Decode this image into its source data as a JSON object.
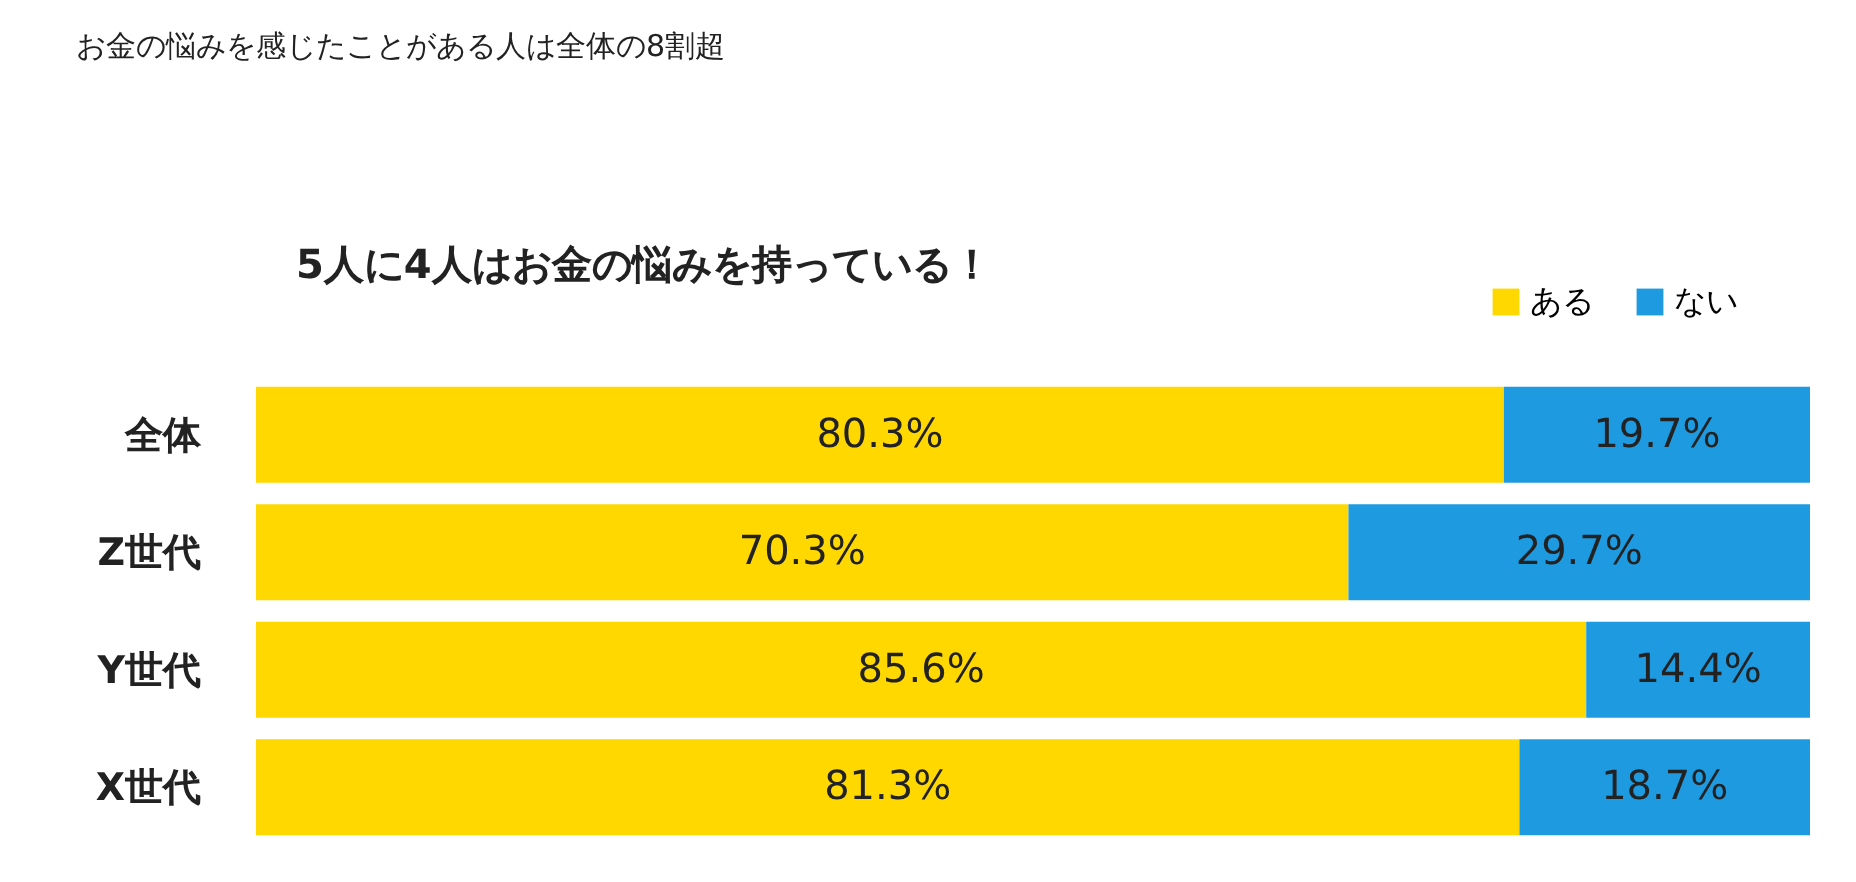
{
  "chart_data": {
    "type": "bar",
    "orientation": "horizontal",
    "stacked": true,
    "title": "お金の悩みを感じたことがある人は全体の8割超",
    "annotations": [
      "5人に4人はお金の悩みを持っている！"
    ],
    "categories": [
      "全体",
      "Z世代",
      "Y世代",
      "X世代"
    ],
    "series": [
      {
        "name": "ある",
        "color": "#ffd800",
        "values": [
          80.3,
          70.3,
          85.6,
          81.3
        ],
        "value_labels": [
          "80.3%",
          "70.3%",
          "85.6%",
          "81.3%"
        ]
      },
      {
        "name": "ない",
        "color": "#1e9be0",
        "values": [
          19.7,
          29.7,
          14.4,
          18.7
        ],
        "value_labels": [
          "19.7%",
          "29.7%",
          "14.4%",
          "18.7%"
        ]
      }
    ],
    "legend": "top right"
  }
}
